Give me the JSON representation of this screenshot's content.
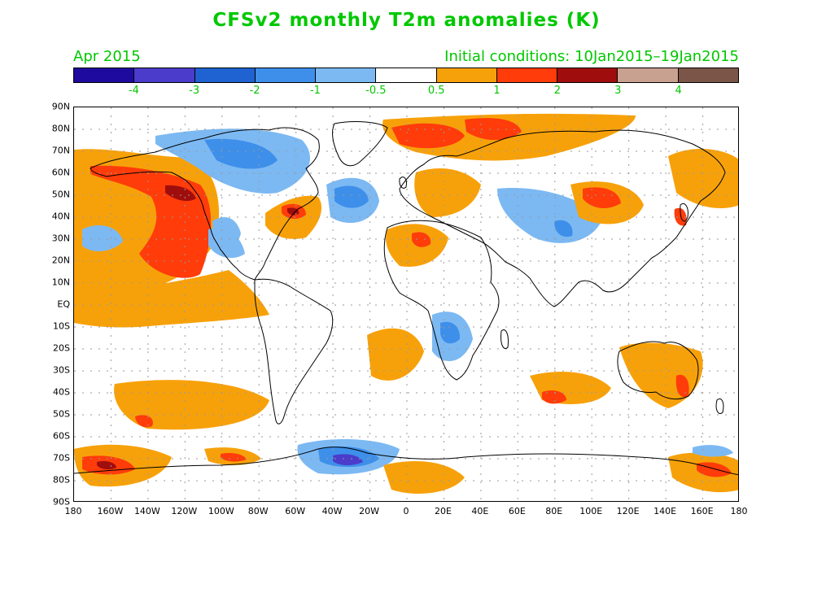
{
  "title": "CFSv2 monthly T2m anomalies (K)",
  "subtitle_left": "Apr 2015",
  "subtitle_right": "Initial conditions: 10Jan2015–19Jan2015",
  "colorbar": {
    "colors": [
      "#1e0a9e",
      "#4b3ccb",
      "#1f62d2",
      "#3e8fea",
      "#7cb9f3",
      "#ffffff",
      "#f7a10a",
      "#ff3c0a",
      "#a00d0d",
      "#c9a190",
      "#7b5547"
    ],
    "labels": [
      "-4",
      "-3",
      "-2",
      "-1",
      "-0.5",
      "0.5",
      "1",
      "2",
      "3",
      "4"
    ]
  },
  "map": {
    "lat_labels": [
      "90N",
      "80N",
      "70N",
      "60N",
      "50N",
      "40N",
      "30N",
      "20N",
      "10N",
      "EQ",
      "10S",
      "20S",
      "30S",
      "40S",
      "50S",
      "60S",
      "70S",
      "80S",
      "90S"
    ],
    "lon_labels": [
      "180",
      "160W",
      "140W",
      "120W",
      "100W",
      "80W",
      "60W",
      "40W",
      "20W",
      "0",
      "20E",
      "40E",
      "60E",
      "80E",
      "100E",
      "120E",
      "140E",
      "160E",
      "180"
    ],
    "anomaly_regions": [
      {
        "level": "1",
        "name": "NE Pacific warm"
      },
      {
        "level": "2",
        "name": "NW North America warm core"
      },
      {
        "level": "-1",
        "name": "Canada cold"
      },
      {
        "level": "-1",
        "name": "North Atlantic cold"
      },
      {
        "level": "2",
        "name": "Arctic Siberia warm"
      },
      {
        "level": "1",
        "name": "Tropical East Pacific warm"
      },
      {
        "level": "-1",
        "name": "Africa cold"
      },
      {
        "level": "1",
        "name": "South Pacific warm"
      },
      {
        "level": "-2",
        "name": "Weddell Sea cold"
      },
      {
        "level": "3",
        "name": "Ross Sea warm"
      }
    ]
  }
}
